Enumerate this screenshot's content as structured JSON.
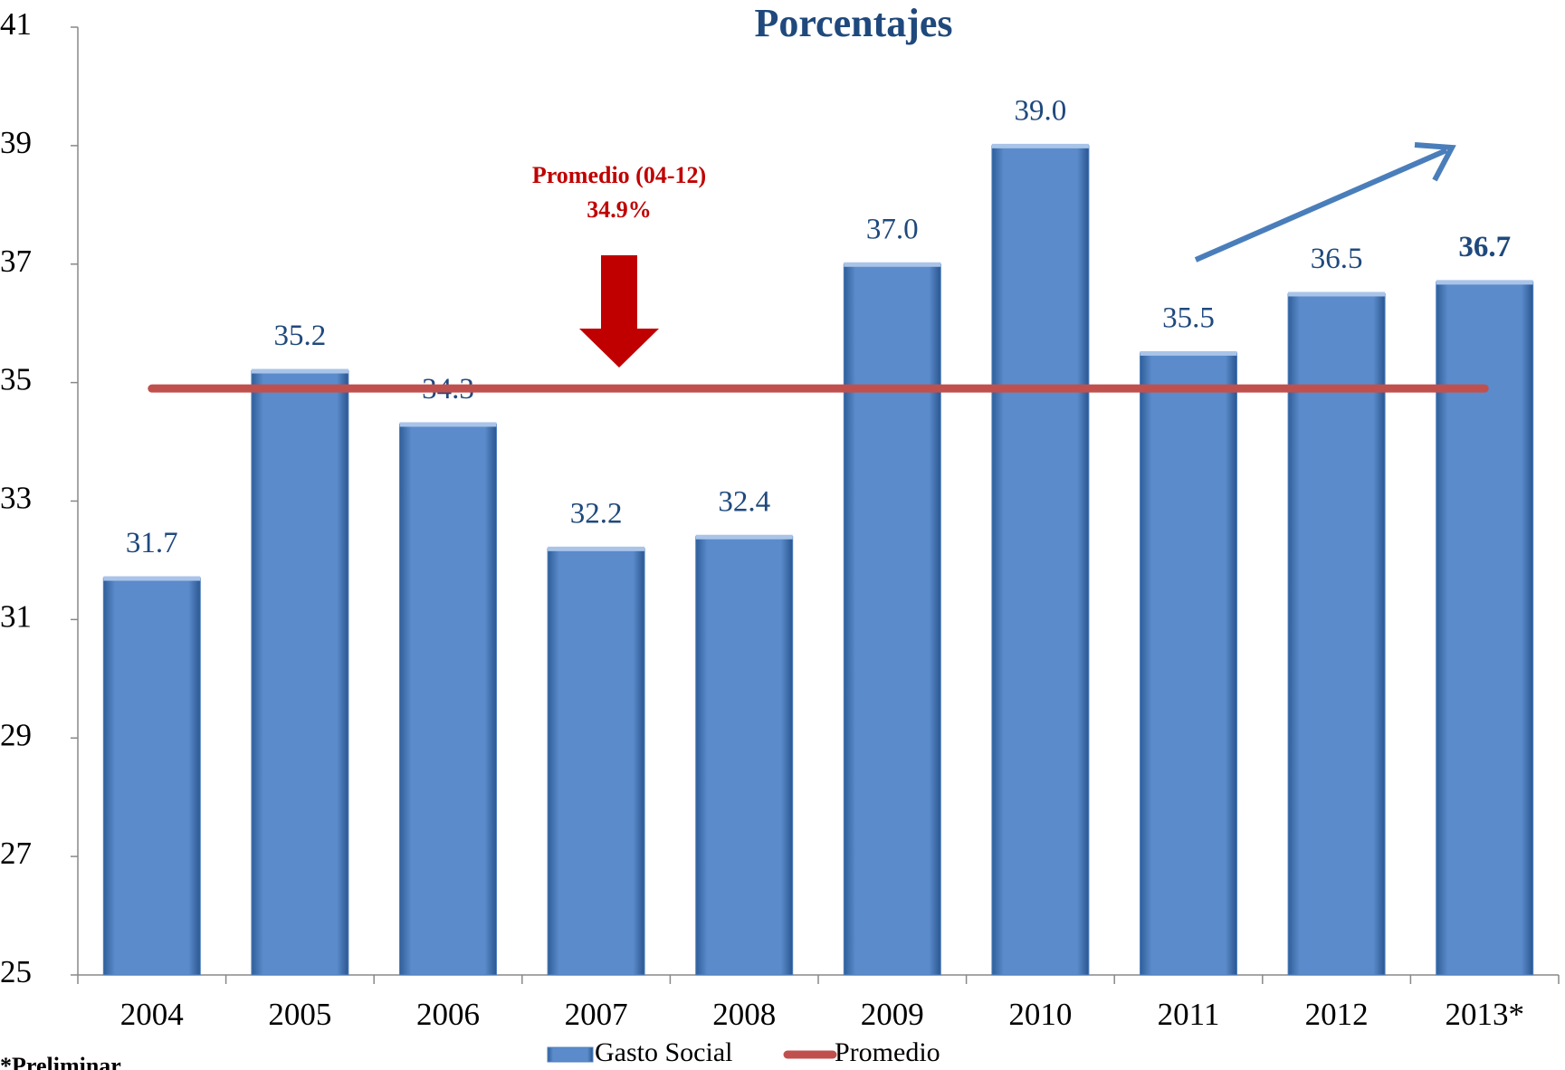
{
  "chart_data": {
    "type": "bar",
    "title": "Porcentajes",
    "categories": [
      "2004",
      "2005",
      "2006",
      "2007",
      "2008",
      "2009",
      "2010",
      "2011",
      "2012",
      "2013*"
    ],
    "series": [
      {
        "name": "Gasto Social",
        "color": "#4f81bd",
        "values": [
          31.7,
          35.2,
          34.3,
          32.2,
          32.4,
          37.0,
          39.0,
          35.5,
          36.5,
          36.7
        ],
        "value_labels": [
          "31.7",
          "35.2",
          "34.3",
          "32.2",
          "32.4",
          "37.0",
          "39.0",
          "35.5",
          "36.5",
          "36.7"
        ]
      },
      {
        "name": "Promedio",
        "color": "#c0504d",
        "type": "line",
        "values": [
          34.9,
          34.9,
          34.9,
          34.9,
          34.9,
          34.9,
          34.9,
          34.9,
          34.9,
          34.9
        ]
      }
    ],
    "ylim": [
      25,
      41
    ],
    "yticks": [
      25,
      27,
      29,
      31,
      33,
      35,
      37,
      39,
      41
    ],
    "annotations": [
      "Promedio (04-12)",
      "34.9%"
    ],
    "footnote": "*Preliminar"
  }
}
